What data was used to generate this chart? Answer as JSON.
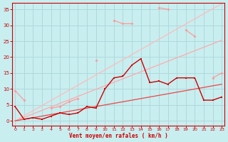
{
  "background_color": "#c8eef0",
  "grid_color": "#b0d8da",
  "text_color": "#cc0000",
  "xlabel": "Vent moyen/en rafales ( km/h )",
  "x": [
    0,
    1,
    2,
    3,
    4,
    5,
    6,
    7,
    8,
    9,
    10,
    11,
    12,
    13,
    14,
    15,
    16,
    17,
    18,
    19,
    20,
    21,
    22,
    23
  ],
  "ylim": [
    -1.5,
    37
  ],
  "xlim": [
    -0.3,
    23.3
  ],
  "line_upper_ref": {
    "color": "#ffbbbb",
    "lw": 0.9,
    "data": [
      0.0,
      1.6,
      3.2,
      4.8,
      6.4,
      8.0,
      9.6,
      11.2,
      12.8,
      14.4,
      16.0,
      17.6,
      19.2,
      20.8,
      22.4,
      24.0,
      25.6,
      27.2,
      28.8,
      30.4,
      32.0,
      33.6,
      35.2,
      36.8
    ]
  },
  "line_mid_ref": {
    "color": "#ffaaaa",
    "lw": 0.9,
    "data": [
      0.0,
      1.1,
      2.2,
      3.3,
      4.4,
      5.5,
      6.6,
      7.7,
      8.8,
      9.9,
      11.0,
      12.1,
      13.2,
      14.3,
      15.4,
      16.5,
      17.6,
      18.7,
      19.8,
      20.9,
      22.0,
      23.1,
      24.2,
      25.3
    ]
  },
  "line_low_ref": {
    "color": "#ee4444",
    "lw": 0.9,
    "data": [
      0.0,
      0.5,
      1.0,
      1.5,
      2.0,
      2.5,
      3.0,
      3.5,
      4.0,
      4.5,
      5.0,
      5.5,
      6.0,
      6.5,
      7.0,
      7.5,
      8.0,
      8.5,
      9.0,
      9.5,
      10.0,
      10.5,
      11.0,
      11.5
    ]
  },
  "line_rafales": {
    "color": "#ff9999",
    "lw": 0.9,
    "marker": "D",
    "markersize": 2.0,
    "data": [
      9.5,
      6.5,
      null,
      null,
      4.0,
      4.5,
      6.0,
      7.0,
      null,
      19.0,
      null,
      31.5,
      30.5,
      30.5,
      null,
      null,
      35.5,
      35.0,
      null,
      28.5,
      26.5,
      null,
      13.5,
      15.0
    ]
  },
  "line_moyen": {
    "color": "#cc0000",
    "lw": 1.0,
    "marker": "s",
    "markersize": 2.0,
    "data": [
      4.5,
      0.5,
      1.0,
      0.5,
      1.5,
      2.5,
      2.0,
      2.5,
      4.5,
      4.0,
      10.0,
      13.5,
      14.0,
      17.5,
      19.5,
      12.0,
      12.5,
      11.5,
      13.5,
      13.5,
      13.5,
      6.5,
      6.5,
      7.5
    ]
  },
  "yticks": [
    0,
    5,
    10,
    15,
    20,
    25,
    30,
    35
  ],
  "xticks": [
    0,
    1,
    2,
    3,
    4,
    5,
    6,
    7,
    8,
    9,
    10,
    11,
    12,
    13,
    14,
    15,
    16,
    17,
    18,
    19,
    20,
    21,
    22,
    23
  ]
}
